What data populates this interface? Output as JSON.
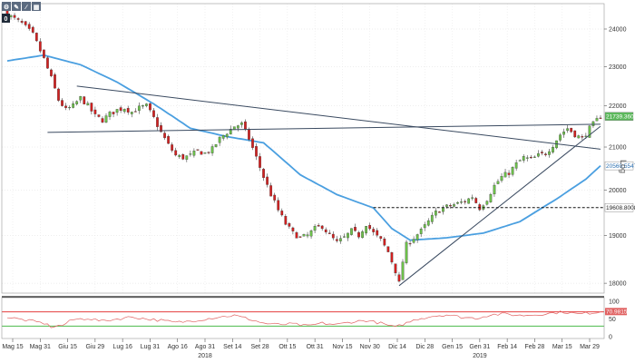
{
  "toolbar": {
    "icons": [
      "gear-icon",
      "edit-icon",
      "draw-icon",
      "table-icon"
    ],
    "panel_number": "0"
  },
  "log_label": "Log",
  "chart_data": {
    "type": "candlestick",
    "title": "",
    "xlabel": "",
    "ylabel": "",
    "scale": "log",
    "ylim": [
      17800,
      24700
    ],
    "y_ticks": [
      "24000",
      "23000",
      "22000",
      "21000",
      "20000",
      "19000",
      "18000"
    ],
    "x_ticks": [
      "Mag 15",
      "Mag 31",
      "Giu 15",
      "Giu 29",
      "Lug 16",
      "Lug 31",
      "Ago 16",
      "Ago 31",
      "Set 14",
      "Set 28",
      "Ott 15",
      "Ott 31",
      "Nov 15",
      "Nov 30",
      "Dic 14",
      "Dic 28",
      "Gen 15",
      "Gen 31",
      "Feb 14",
      "Feb 28",
      "Mar 15",
      "Mar 29"
    ],
    "year_labels": [
      {
        "label": "2018",
        "after_tick": "Ago 31"
      },
      {
        "label": "2019",
        "after_tick": "Gen 31"
      }
    ],
    "close_path": [
      [
        0,
        24400
      ],
      [
        4,
        24150
      ],
      [
        7,
        23850
      ],
      [
        10,
        23200
      ],
      [
        12,
        22700
      ],
      [
        14,
        22150
      ],
      [
        16,
        21900
      ],
      [
        18,
        22000
      ],
      [
        20,
        22200
      ],
      [
        22,
        22000
      ],
      [
        24,
        21750
      ],
      [
        26,
        21650
      ],
      [
        28,
        21800
      ],
      [
        30,
        21900
      ],
      [
        32,
        21950
      ],
      [
        34,
        21850
      ],
      [
        36,
        21950
      ],
      [
        38,
        22000
      ],
      [
        40,
        21700
      ],
      [
        42,
        21350
      ],
      [
        44,
        21050
      ],
      [
        46,
        20800
      ],
      [
        48,
        20750
      ],
      [
        50,
        20800
      ],
      [
        52,
        20900
      ],
      [
        54,
        20850
      ],
      [
        56,
        20950
      ],
      [
        58,
        21200
      ],
      [
        60,
        21350
      ],
      [
        62,
        21500
      ],
      [
        64,
        21550
      ],
      [
        66,
        21200
      ],
      [
        68,
        20750
      ],
      [
        70,
        20300
      ],
      [
        72,
        19900
      ],
      [
        74,
        19550
      ],
      [
        76,
        19250
      ],
      [
        78,
        19050
      ],
      [
        80,
        18950
      ],
      [
        82,
        19000
      ],
      [
        84,
        19150
      ],
      [
        86,
        19200
      ],
      [
        88,
        19000
      ],
      [
        90,
        18850
      ],
      [
        92,
        18950
      ],
      [
        94,
        19100
      ],
      [
        96,
        19000
      ],
      [
        98,
        19250
      ],
      [
        100,
        19050
      ],
      [
        102,
        18900
      ],
      [
        104,
        18650
      ],
      [
        106,
        18250
      ],
      [
        107,
        18000
      ],
      [
        108,
        18450
      ],
      [
        109,
        18800
      ],
      [
        111,
        18950
      ],
      [
        113,
        19100
      ],
      [
        115,
        19300
      ],
      [
        117,
        19500
      ],
      [
        119,
        19600
      ],
      [
        121,
        19650
      ],
      [
        123,
        19700
      ],
      [
        125,
        19750
      ],
      [
        127,
        19850
      ],
      [
        129,
        19600
      ],
      [
        131,
        19800
      ],
      [
        133,
        20100
      ],
      [
        135,
        20300
      ],
      [
        137,
        20400
      ],
      [
        139,
        20600
      ],
      [
        141,
        20750
      ],
      [
        143,
        20700
      ],
      [
        145,
        20800
      ],
      [
        147,
        20850
      ],
      [
        149,
        21050
      ],
      [
        151,
        21300
      ],
      [
        153,
        21450
      ],
      [
        155,
        21300
      ],
      [
        157,
        21200
      ],
      [
        159,
        21450
      ],
      [
        161,
        21650
      ],
      [
        162,
        21740
      ]
    ],
    "series": [
      {
        "name": "",
        "type": "moving-average",
        "color": "#4a9fe0",
        "values": [
          [
            0,
            23150
          ],
          [
            10,
            23300
          ],
          [
            20,
            23050
          ],
          [
            30,
            22600
          ],
          [
            40,
            22050
          ],
          [
            50,
            21450
          ],
          [
            60,
            21250
          ],
          [
            70,
            21100
          ],
          [
            80,
            20350
          ],
          [
            90,
            19900
          ],
          [
            100,
            19600
          ],
          [
            105,
            19150
          ],
          [
            110,
            18900
          ],
          [
            120,
            18950
          ],
          [
            130,
            19050
          ],
          [
            140,
            19300
          ],
          [
            150,
            19800
          ],
          [
            158,
            20250
          ],
          [
            162,
            20560
          ]
        ]
      }
    ],
    "trend_lines": [
      {
        "from": [
          11,
          21350
        ],
        "to": [
          162,
          21550
        ]
      },
      {
        "from": [
          19,
          22500
        ],
        "to": [
          162,
          20950
        ]
      },
      {
        "from": [
          107,
          17950
        ],
        "to": [
          162,
          21500
        ]
      }
    ],
    "horizontal_level": {
      "value": 19609,
      "from_index": 100,
      "style": "dashed"
    },
    "price_tags": [
      {
        "value": 21740,
        "label": "21739.3602",
        "bg": "#5cb85c",
        "fg": "#ffffff"
      },
      {
        "value": 20560,
        "label": "20560.5547",
        "bg": "#ffffff",
        "fg": "#2a6fb0"
      },
      {
        "value": 19609,
        "label": "19608.8008",
        "bg": "#ffffff",
        "fg": "#222222"
      }
    ],
    "colors": {
      "up": "#6cc04a",
      "down": "#d22020",
      "trend": "#3a4a60",
      "ma": "#4a9fe0",
      "rsi": "#e06060"
    },
    "rsi": {
      "ylim": [
        0,
        100
      ],
      "ticks": [
        "100",
        "50",
        "0"
      ],
      "levels": [
        {
          "value": 70,
          "color": "#e02020"
        },
        {
          "value": 30,
          "color": "#30b030"
        }
      ],
      "current_label": "70.9815",
      "values": [
        [
          0,
          55
        ],
        [
          6,
          45
        ],
        [
          10,
          38
        ],
        [
          12,
          28
        ],
        [
          15,
          32
        ],
        [
          18,
          48
        ],
        [
          22,
          52
        ],
        [
          26,
          44
        ],
        [
          30,
          50
        ],
        [
          34,
          56
        ],
        [
          38,
          50
        ],
        [
          42,
          46
        ],
        [
          46,
          40
        ],
        [
          50,
          44
        ],
        [
          54,
          50
        ],
        [
          58,
          56
        ],
        [
          62,
          60
        ],
        [
          66,
          50
        ],
        [
          70,
          38
        ],
        [
          74,
          34
        ],
        [
          78,
          36
        ],
        [
          82,
          30
        ],
        [
          86,
          38
        ],
        [
          90,
          34
        ],
        [
          94,
          42
        ],
        [
          98,
          46
        ],
        [
          102,
          38
        ],
        [
          106,
          26
        ],
        [
          108,
          35
        ],
        [
          112,
          50
        ],
        [
          116,
          58
        ],
        [
          120,
          62
        ],
        [
          124,
          55
        ],
        [
          128,
          52
        ],
        [
          132,
          62
        ],
        [
          136,
          64
        ],
        [
          140,
          60
        ],
        [
          144,
          62
        ],
        [
          148,
          66
        ],
        [
          152,
          70
        ],
        [
          156,
          64
        ],
        [
          160,
          68
        ],
        [
          162,
          71
        ]
      ]
    },
    "bar_count": 163,
    "grid": true
  }
}
